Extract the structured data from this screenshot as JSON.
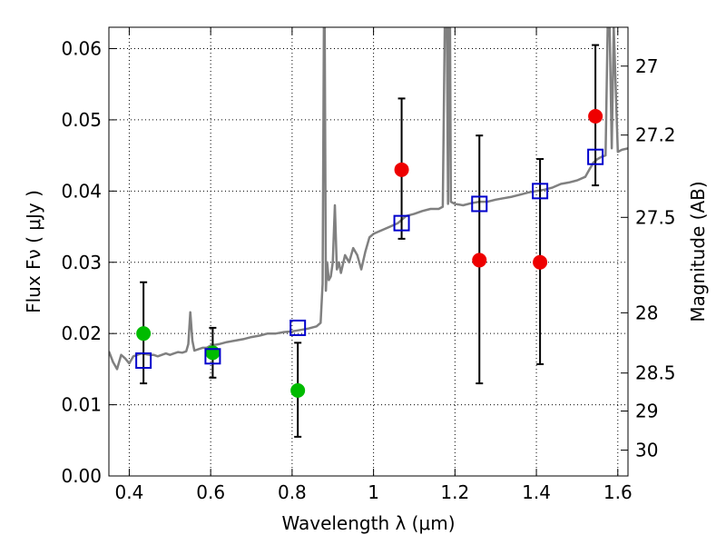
{
  "chart_data": {
    "type": "scatter",
    "xlabel": "Wavelength  λ (μm)",
    "ylabel": "Flux  Fν  ( μJy )",
    "y2label": "Magnitude (AB)",
    "xlim": [
      0.35,
      1.625
    ],
    "ylim": [
      0.0,
      0.063
    ],
    "grid": true,
    "grid_style": "dotted",
    "x_ticks": [
      0.4,
      0.6,
      0.8,
      1.0,
      1.2,
      1.4,
      1.6
    ],
    "x_tick_labels": [
      "0.4",
      "0.6",
      "0.8",
      "1",
      "1.2",
      "1.4",
      "1.6"
    ],
    "y_ticks": [
      0.0,
      0.01,
      0.02,
      0.03,
      0.04,
      0.05,
      0.06
    ],
    "y_tick_labels": [
      "0.00",
      "0.01",
      "0.02",
      "0.03",
      "0.04",
      "0.05",
      "0.06"
    ],
    "y2_ticks": [
      27,
      27.2,
      27.5,
      28,
      28.5,
      29,
      30
    ],
    "y2_tick_labels": [
      "27",
      "27.2",
      "27.5",
      "28",
      "28.5",
      "29",
      "30"
    ],
    "colors": {
      "model": "#808080",
      "green_points": "#00bb00",
      "red_points": "#ee0000",
      "squares": "#0000cc",
      "errorbars": "#000000"
    },
    "series": [
      {
        "type": "line",
        "color": "#808080",
        "x": [
          0.35,
          0.36,
          0.37,
          0.38,
          0.39,
          0.4,
          0.41,
          0.42,
          0.43,
          0.44,
          0.45,
          0.46,
          0.47,
          0.48,
          0.49,
          0.5,
          0.51,
          0.52,
          0.53,
          0.54,
          0.545,
          0.55,
          0.555,
          0.56,
          0.57,
          0.58,
          0.59,
          0.6,
          0.62,
          0.64,
          0.66,
          0.68,
          0.7,
          0.72,
          0.74,
          0.76,
          0.78,
          0.8,
          0.82,
          0.84,
          0.86,
          0.87,
          0.875,
          0.878,
          0.88,
          0.883,
          0.886,
          0.89,
          0.895,
          0.9,
          0.905,
          0.91,
          0.915,
          0.92,
          0.93,
          0.94,
          0.95,
          0.96,
          0.97,
          0.98,
          0.99,
          1.0,
          1.02,
          1.04,
          1.06,
          1.08,
          1.1,
          1.12,
          1.14,
          1.16,
          1.17,
          1.175,
          1.18,
          1.183,
          1.185,
          1.188,
          1.19,
          1.2,
          1.22,
          1.24,
          1.26,
          1.28,
          1.3,
          1.32,
          1.34,
          1.36,
          1.38,
          1.4,
          1.42,
          1.44,
          1.46,
          1.48,
          1.5,
          1.52,
          1.53,
          1.54,
          1.55,
          1.56,
          1.57,
          1.575,
          1.58,
          1.585,
          1.59,
          1.6,
          1.61,
          1.625
        ],
        "y": [
          0.0175,
          0.016,
          0.015,
          0.017,
          0.0165,
          0.0158,
          0.0168,
          0.017,
          0.0172,
          0.0171,
          0.017,
          0.017,
          0.0168,
          0.017,
          0.0172,
          0.017,
          0.0172,
          0.0174,
          0.0173,
          0.0175,
          0.0185,
          0.023,
          0.019,
          0.0176,
          0.0178,
          0.018,
          0.018,
          0.0183,
          0.0185,
          0.0188,
          0.019,
          0.0192,
          0.0195,
          0.0197,
          0.02,
          0.02,
          0.0202,
          0.0203,
          0.0205,
          0.0207,
          0.021,
          0.0215,
          0.027,
          0.063,
          0.063,
          0.026,
          0.03,
          0.0275,
          0.028,
          0.03,
          0.038,
          0.029,
          0.03,
          0.0285,
          0.031,
          0.03,
          0.032,
          0.031,
          0.029,
          0.0315,
          0.0335,
          0.034,
          0.0345,
          0.035,
          0.0355,
          0.0365,
          0.0368,
          0.0372,
          0.0375,
          0.0375,
          0.0378,
          0.063,
          0.063,
          0.0382,
          0.063,
          0.063,
          0.0385,
          0.0382,
          0.038,
          0.0383,
          0.0385,
          0.0385,
          0.0388,
          0.039,
          0.0392,
          0.0395,
          0.0398,
          0.04,
          0.0402,
          0.0405,
          0.041,
          0.0412,
          0.0415,
          0.042,
          0.043,
          0.044,
          0.0445,
          0.0448,
          0.045,
          0.063,
          0.063,
          0.046,
          0.063,
          0.0455,
          0.0458,
          0.046
        ]
      },
      {
        "type": "points",
        "marker": "circle",
        "color": "#00bb00",
        "x": [
          0.435,
          0.605,
          0.814
        ],
        "y": [
          0.02,
          0.0173,
          0.012
        ]
      },
      {
        "type": "points",
        "marker": "circle",
        "color": "#ee0000",
        "x": [
          1.069,
          1.26,
          1.409,
          1.545
        ],
        "y": [
          0.043,
          0.0303,
          0.03,
          0.0505
        ]
      },
      {
        "type": "points",
        "marker": "open-square",
        "color": "#0000cc",
        "x": [
          0.435,
          0.605,
          0.814,
          1.069,
          1.26,
          1.409,
          1.545
        ],
        "y": [
          0.0162,
          0.0168,
          0.0208,
          0.0355,
          0.0382,
          0.04,
          0.0448
        ]
      },
      {
        "type": "errorbars",
        "color": "#000000",
        "x": [
          0.435,
          0.605,
          0.814,
          1.069,
          1.26,
          1.409,
          1.545
        ],
        "low": [
          0.013,
          0.0138,
          0.0055,
          0.0333,
          0.013,
          0.0157,
          0.0408
        ],
        "high": [
          0.0272,
          0.0208,
          0.0187,
          0.053,
          0.0478,
          0.0445,
          0.0605
        ]
      }
    ]
  }
}
